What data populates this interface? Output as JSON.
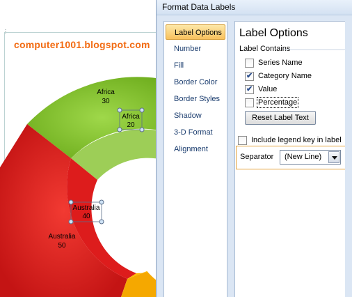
{
  "watermark": "computer1001.blogspot.com",
  "chart": {
    "type": "doughnut",
    "series_colors": {
      "Africa": "#7fbe2a",
      "Australia": "#e02020",
      "Other": "#f7b500"
    },
    "data_labels": [
      {
        "category": "Africa",
        "value": "30"
      },
      {
        "category": "Africa",
        "value": "20"
      },
      {
        "category": "Australia",
        "value": "40"
      },
      {
        "category": "Australia",
        "value": "50"
      }
    ]
  },
  "dialog": {
    "title": "Format Data Labels",
    "nav_items": [
      {
        "label": "Label Options",
        "selected": true
      },
      {
        "label": "Number"
      },
      {
        "label": "Fill"
      },
      {
        "label": "Border Color"
      },
      {
        "label": "Border Styles"
      },
      {
        "label": "Shadow"
      },
      {
        "label": "3-D Format"
      },
      {
        "label": "Alignment"
      }
    ],
    "content_heading": "Label Options",
    "label_contains_heading": "Label Contains",
    "options": [
      {
        "label": "Series Name",
        "checked": false
      },
      {
        "label": "Category Name",
        "checked": true
      },
      {
        "label": "Value",
        "checked": true
      },
      {
        "label": "Percentage",
        "checked": false
      }
    ],
    "reset_button": "Reset Label Text",
    "legend_key_label": "Include legend key in label",
    "legend_key_checked": false,
    "separator_label": "Separator",
    "separator_value": "(New Line)"
  }
}
